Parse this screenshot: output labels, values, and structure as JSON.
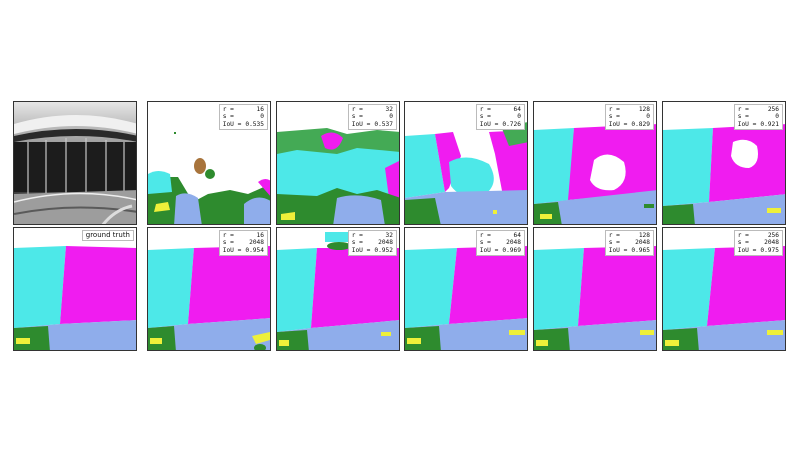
{
  "palette": {
    "cyan": "#4de8e8",
    "magenta": "#f01cf0",
    "green": "#2e8b2e",
    "lightgreen": "#44aa55",
    "blue": "#8fadeb",
    "yellow": "#eef03a",
    "brown": "#a8743c",
    "gray_bg": "#6a6a6a",
    "border": "#333333"
  },
  "ground_truth_label": "ground truth",
  "top_row": [
    {
      "r": "16",
      "s": "0",
      "iou": "0.535"
    },
    {
      "r": "32",
      "s": "0",
      "iou": "0.537"
    },
    {
      "r": "64",
      "s": "0",
      "iou": "0.726"
    },
    {
      "r": "128",
      "s": "0",
      "iou": "0.829"
    },
    {
      "r": "256",
      "s": "0",
      "iou": "0.921"
    }
  ],
  "bottom_row": [
    {
      "r": "16",
      "s": "2048",
      "iou": "0.954"
    },
    {
      "r": "32",
      "s": "2048",
      "iou": "0.952"
    },
    {
      "r": "64",
      "s": "2048",
      "iou": "0.969"
    },
    {
      "r": "128",
      "s": "2048",
      "iou": "0.965"
    },
    {
      "r": "256",
      "s": "2048",
      "iou": "0.975"
    }
  ],
  "legend_labels": {
    "r": "r =",
    "s": "s =",
    "iou": "IoU ="
  }
}
